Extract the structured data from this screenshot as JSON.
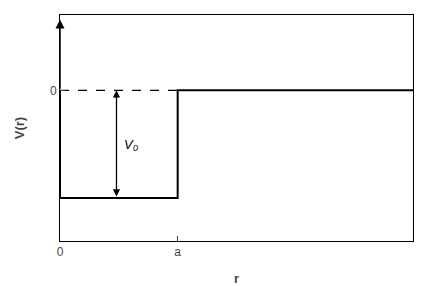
{
  "chart_data": {
    "type": "line",
    "xlabel": "r",
    "ylabel": "V(r)",
    "series": [
      {
        "color": "#000000",
        "line_style": "solid",
        "x": [
          0.0,
          0.0,
          1.0,
          1.0,
          3.0
        ],
        "values": [
          0.0,
          -1.0,
          -1.0,
          0.0,
          0.0
        ]
      },
      {
        "color": "#000000",
        "line_style": "dashed",
        "x": [
          0.0,
          1.0
        ],
        "values": [
          0.0,
          0.0
        ]
      }
    ],
    "annotations": [
      {
        "text": "V₀"
      }
    ],
    "xlim": [
      0.0,
      3.0
    ],
    "ylim": [
      -1.4,
      0.7
    ],
    "xticks": [
      0,
      {
        "value": 1,
        "label": "a"
      }
    ],
    "yticks": [
      0
    ],
    "grid": false
  }
}
